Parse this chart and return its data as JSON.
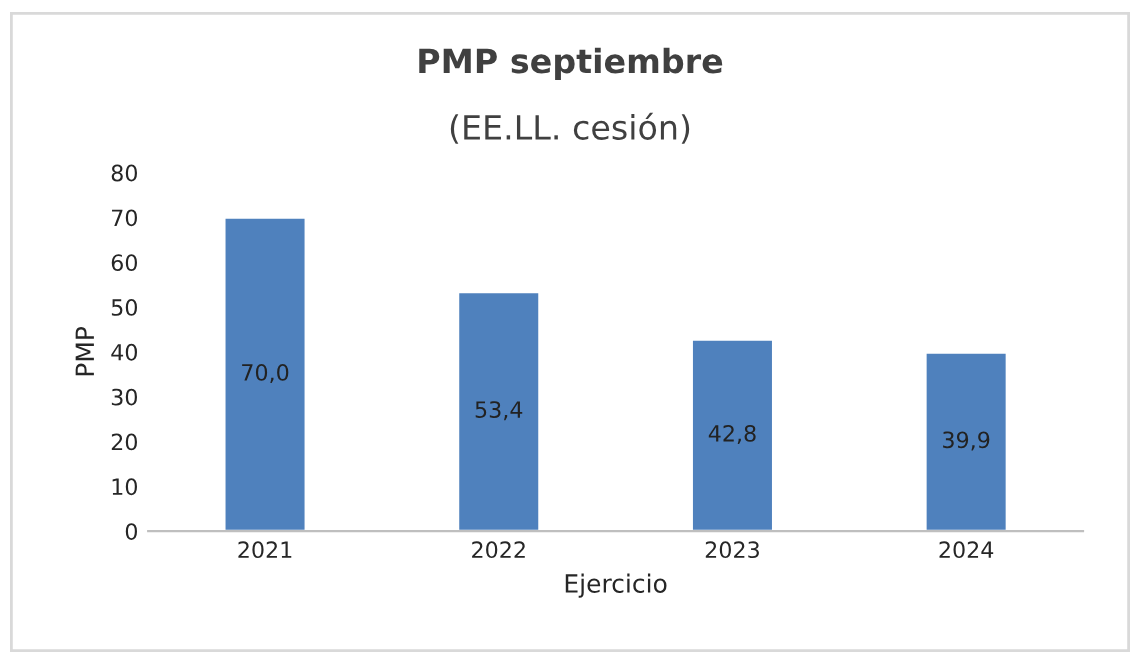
{
  "chart_data": {
    "type": "bar",
    "title": "PMP septiembre",
    "subtitle": "(EE.LL. cesión)",
    "xlabel": "Ejercicio",
    "ylabel": "PMP",
    "categories": [
      "2021",
      "2022",
      "2023",
      "2024"
    ],
    "values": [
      70.0,
      53.4,
      42.8,
      39.9
    ],
    "value_labels": [
      "70,0",
      "53,4",
      "42,8",
      "39,9"
    ],
    "color": "#4f81bd",
    "ylim": [
      0,
      80
    ],
    "yticks": [
      0,
      10,
      20,
      30,
      40,
      50,
      60,
      70,
      80
    ],
    "grid": false
  }
}
